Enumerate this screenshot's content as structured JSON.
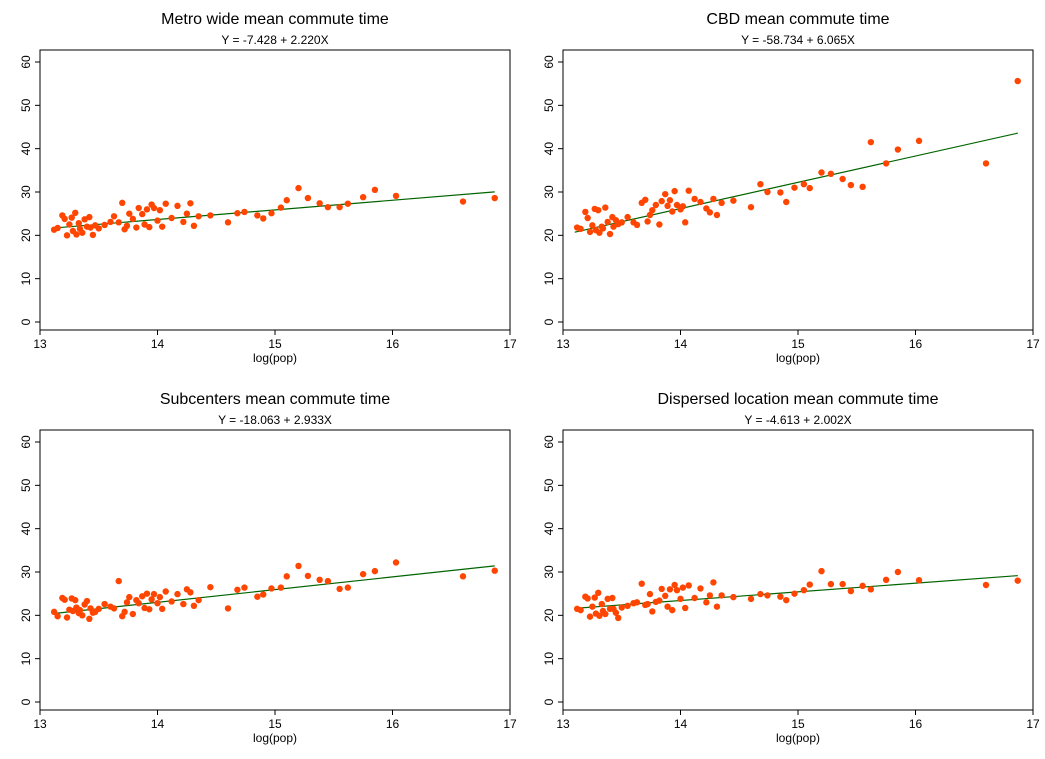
{
  "chart_data": [
    {
      "type": "scatter",
      "title": "Metro wide mean commute time",
      "subtitle": "Y = -7.428 + 2.220X",
      "xlabel": "log(pop)",
      "ylabel": "",
      "xlim": [
        13,
        17
      ],
      "ylim": [
        0,
        60
      ],
      "xticks": [
        "13",
        "14",
        "15",
        "16",
        "17"
      ],
      "yticks": [
        "0",
        "10",
        "20",
        "30",
        "40",
        "50",
        "60"
      ],
      "fit": {
        "intercept": -7.428,
        "slope": 2.22,
        "x_range": [
          13.1,
          16.87
        ]
      },
      "marker_color": "#ff4500",
      "line_color": "#006400",
      "x": [
        13.12,
        13.15,
        13.19,
        13.21,
        13.23,
        13.25,
        13.27,
        13.28,
        13.3,
        13.31,
        13.33,
        13.34,
        13.36,
        13.38,
        13.4,
        13.42,
        13.43,
        13.45,
        13.47,
        13.5,
        13.55,
        13.6,
        13.63,
        13.67,
        13.7,
        13.72,
        13.74,
        13.76,
        13.79,
        13.82,
        13.84,
        13.87,
        13.89,
        13.91,
        13.93,
        13.95,
        13.97,
        14.0,
        14.02,
        14.04,
        14.07,
        14.12,
        14.17,
        14.22,
        14.25,
        14.28,
        14.31,
        14.35,
        14.45,
        14.6,
        14.68,
        14.74,
        14.85,
        14.9,
        14.97,
        15.05,
        15.1,
        15.2,
        15.28,
        15.38,
        15.45,
        15.55,
        15.62,
        15.75,
        15.85,
        16.03,
        16.6,
        16.87
      ],
      "y": [
        21.3,
        21.7,
        24.6,
        23.8,
        20.0,
        22.5,
        24.1,
        21.0,
        25.2,
        20.2,
        22.8,
        21.5,
        20.6,
        23.7,
        22.0,
        24.2,
        21.8,
        20.1,
        22.3,
        21.6,
        22.4,
        23.1,
        24.4,
        23.0,
        27.5,
        21.4,
        22.2,
        25.0,
        23.8,
        21.8,
        26.3,
        24.9,
        22.5,
        26.0,
        21.9,
        27.1,
        26.3,
        23.4,
        25.8,
        22.0,
        27.3,
        24.0,
        26.8,
        23.1,
        25.0,
        27.4,
        22.2,
        24.4,
        24.6,
        23.0,
        25.1,
        25.4,
        24.6,
        23.9,
        25.1,
        26.4,
        28.1,
        30.9,
        28.6,
        27.4,
        26.5,
        26.5,
        27.3,
        28.8,
        30.5,
        29.1,
        27.8,
        28.6
      ]
    },
    {
      "type": "scatter",
      "title": "CBD mean commute time",
      "subtitle": "Y = -58.734 + 6.065X",
      "xlabel": "log(pop)",
      "ylabel": "",
      "xlim": [
        13,
        17
      ],
      "ylim": [
        0,
        60
      ],
      "xticks": [
        "13",
        "14",
        "15",
        "16",
        "17"
      ],
      "yticks": [
        "0",
        "10",
        "20",
        "30",
        "40",
        "50",
        "60"
      ],
      "fit": {
        "intercept": -58.734,
        "slope": 6.065,
        "x_range": [
          13.1,
          16.87
        ]
      },
      "marker_color": "#ff4500",
      "line_color": "#006400",
      "x": [
        13.12,
        13.15,
        13.19,
        13.21,
        13.23,
        13.25,
        13.27,
        13.28,
        13.3,
        13.31,
        13.33,
        13.34,
        13.36,
        13.38,
        13.4,
        13.42,
        13.43,
        13.45,
        13.47,
        13.5,
        13.55,
        13.6,
        13.63,
        13.67,
        13.7,
        13.72,
        13.74,
        13.76,
        13.79,
        13.82,
        13.84,
        13.87,
        13.89,
        13.91,
        13.93,
        13.95,
        13.97,
        14.0,
        14.02,
        14.04,
        14.07,
        14.12,
        14.17,
        14.22,
        14.25,
        14.28,
        14.31,
        14.35,
        14.45,
        14.6,
        14.68,
        14.74,
        14.85,
        14.9,
        14.97,
        15.05,
        15.1,
        15.2,
        15.28,
        15.38,
        15.45,
        15.55,
        15.62,
        15.75,
        15.85,
        16.03,
        16.6,
        16.87
      ],
      "y": [
        21.8,
        21.5,
        25.4,
        24.0,
        20.8,
        22.3,
        26.1,
        21.2,
        25.8,
        20.6,
        22.0,
        21.6,
        26.4,
        23.1,
        20.3,
        24.2,
        22.0,
        23.5,
        22.6,
        23.0,
        24.2,
        23.0,
        22.4,
        27.5,
        28.2,
        23.2,
        24.7,
        25.8,
        27.0,
        22.5,
        27.9,
        29.5,
        26.8,
        28.1,
        25.5,
        30.2,
        27.0,
        26.0,
        26.7,
        23.0,
        30.3,
        28.4,
        27.7,
        26.2,
        25.3,
        28.4,
        24.7,
        27.5,
        28.0,
        26.5,
        31.8,
        30.0,
        29.9,
        27.7,
        31.0,
        31.8,
        30.9,
        34.5,
        34.2,
        33.0,
        31.6,
        31.2,
        41.5,
        36.6,
        39.8,
        41.8,
        36.6,
        55.6
      ]
    },
    {
      "type": "scatter",
      "title": "Subcenters mean commute time",
      "subtitle": "Y = -18.063 + 2.933X",
      "xlabel": "log(pop)",
      "ylabel": "",
      "xlim": [
        13,
        17
      ],
      "ylim": [
        0,
        60
      ],
      "xticks": [
        "13",
        "14",
        "15",
        "16",
        "17"
      ],
      "yticks": [
        "0",
        "10",
        "20",
        "30",
        "40",
        "50",
        "60"
      ],
      "fit": {
        "intercept": -18.063,
        "slope": 2.933,
        "x_range": [
          13.1,
          16.87
        ]
      },
      "marker_color": "#ff4500",
      "line_color": "#006400",
      "x": [
        13.12,
        13.15,
        13.19,
        13.21,
        13.23,
        13.25,
        13.27,
        13.28,
        13.3,
        13.31,
        13.33,
        13.34,
        13.36,
        13.38,
        13.4,
        13.42,
        13.43,
        13.45,
        13.47,
        13.5,
        13.55,
        13.6,
        13.63,
        13.67,
        13.7,
        13.72,
        13.74,
        13.76,
        13.79,
        13.82,
        13.84,
        13.87,
        13.89,
        13.91,
        13.93,
        13.95,
        13.97,
        14.0,
        14.02,
        14.04,
        14.07,
        14.12,
        14.17,
        14.22,
        14.25,
        14.28,
        14.31,
        14.35,
        14.45,
        14.6,
        14.68,
        14.74,
        14.85,
        14.9,
        14.97,
        15.05,
        15.1,
        15.2,
        15.28,
        15.38,
        15.45,
        15.55,
        15.62,
        15.75,
        15.85,
        16.03,
        16.6,
        16.87
      ],
      "y": [
        20.8,
        19.8,
        24.0,
        23.6,
        19.5,
        21.3,
        23.9,
        21.0,
        23.5,
        21.8,
        20.5,
        21.2,
        20.0,
        22.5,
        23.3,
        19.2,
        21.6,
        20.6,
        20.8,
        21.5,
        22.6,
        22.0,
        21.6,
        27.9,
        19.8,
        20.8,
        23.0,
        24.2,
        20.3,
        23.5,
        22.8,
        24.4,
        21.7,
        25.0,
        21.4,
        23.7,
        24.9,
        22.8,
        24.2,
        21.5,
        25.5,
        23.2,
        24.9,
        22.6,
        26.0,
        25.3,
        22.2,
        23.5,
        26.5,
        21.6,
        25.9,
        26.4,
        24.3,
        24.8,
        26.2,
        26.4,
        29.0,
        31.4,
        29.1,
        28.2,
        27.9,
        26.1,
        26.4,
        29.5,
        30.2,
        32.2,
        29.0,
        30.3
      ]
    },
    {
      "type": "scatter",
      "title": "Dispersed location mean commute time",
      "subtitle": "Y = -4.613 + 2.002X",
      "xlabel": "log(pop)",
      "ylabel": "",
      "xlim": [
        13,
        17
      ],
      "ylim": [
        0,
        60
      ],
      "xticks": [
        "13",
        "14",
        "15",
        "16",
        "17"
      ],
      "yticks": [
        "0",
        "10",
        "20",
        "30",
        "40",
        "50",
        "60"
      ],
      "fit": {
        "intercept": -4.613,
        "slope": 2.002,
        "x_range": [
          13.1,
          16.87
        ]
      },
      "marker_color": "#ff4500",
      "line_color": "#006400",
      "x": [
        13.12,
        13.15,
        13.19,
        13.21,
        13.23,
        13.25,
        13.27,
        13.28,
        13.3,
        13.31,
        13.33,
        13.34,
        13.36,
        13.38,
        13.4,
        13.42,
        13.43,
        13.45,
        13.47,
        13.5,
        13.55,
        13.6,
        13.63,
        13.67,
        13.7,
        13.72,
        13.74,
        13.76,
        13.79,
        13.82,
        13.84,
        13.87,
        13.89,
        13.91,
        13.93,
        13.95,
        13.97,
        14.0,
        14.02,
        14.04,
        14.07,
        14.12,
        14.17,
        14.22,
        14.25,
        14.28,
        14.31,
        14.35,
        14.45,
        14.6,
        14.68,
        14.74,
        14.85,
        14.9,
        14.97,
        15.05,
        15.1,
        15.2,
        15.28,
        15.38,
        15.45,
        15.55,
        15.62,
        15.75,
        15.85,
        16.03,
        16.6,
        16.87
      ],
      "y": [
        21.5,
        21.2,
        24.3,
        23.9,
        19.7,
        22.0,
        24.1,
        20.4,
        25.2,
        19.9,
        22.6,
        21.0,
        20.3,
        23.8,
        21.5,
        24.0,
        21.5,
        20.6,
        19.4,
        21.8,
        22.2,
        22.8,
        23.0,
        27.3,
        22.4,
        22.6,
        24.9,
        20.9,
        23.1,
        23.4,
        26.1,
        24.5,
        22.0,
        26.0,
        21.2,
        27.0,
        25.8,
        23.8,
        26.4,
        21.7,
        26.9,
        24.0,
        26.2,
        23.0,
        24.6,
        27.6,
        22.0,
        24.6,
        24.2,
        23.8,
        24.9,
        24.6,
        24.3,
        23.5,
        25.0,
        25.8,
        27.1,
        30.2,
        27.2,
        27.2,
        25.6,
        26.8,
        26.0,
        28.2,
        30.0,
        28.1,
        27.0,
        28.0
      ]
    }
  ]
}
